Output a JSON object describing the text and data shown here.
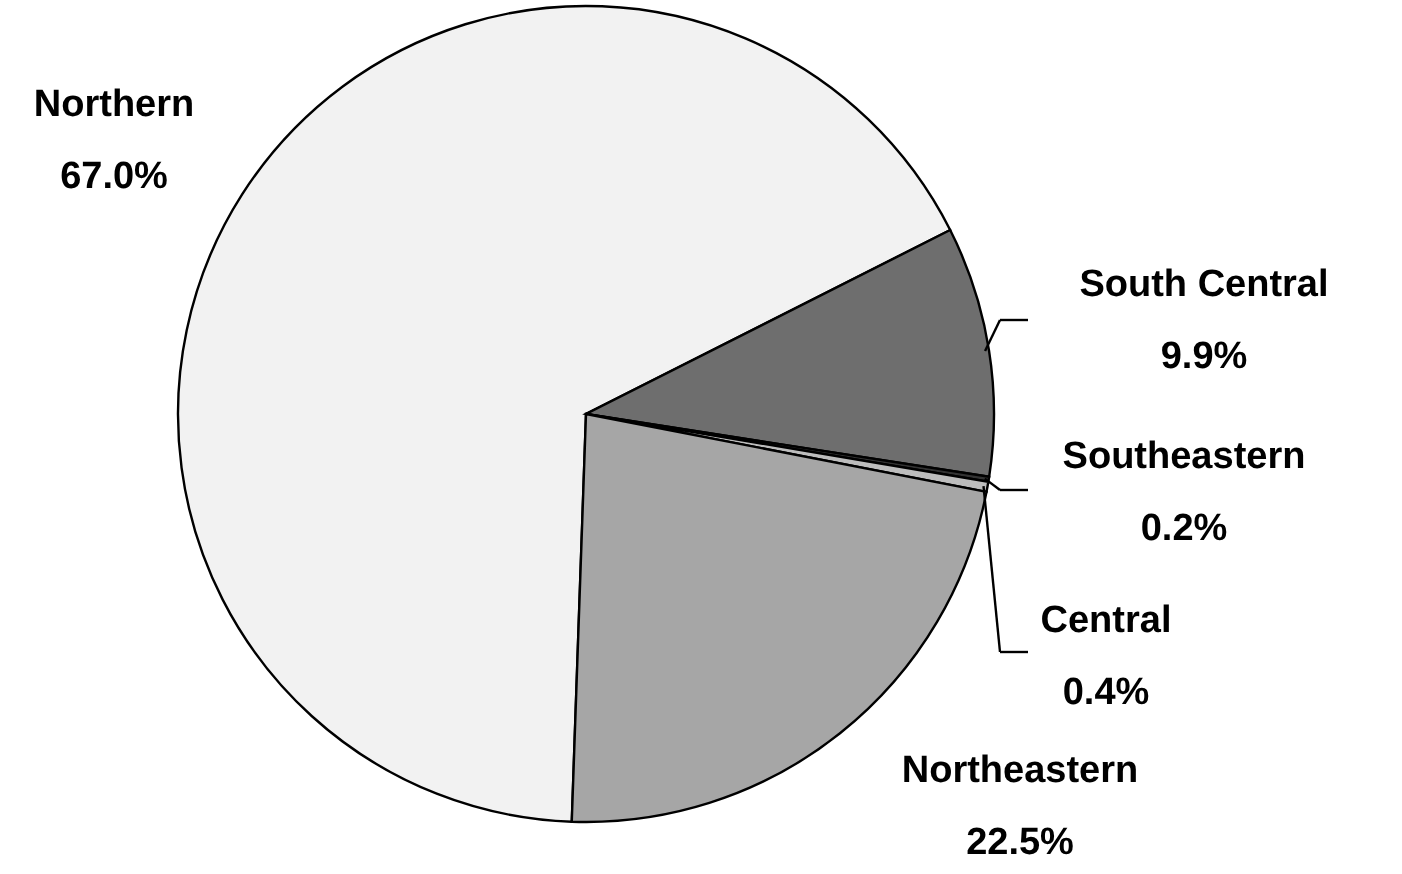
{
  "chart_data": {
    "type": "pie",
    "categories": [
      "Northern",
      "South Central",
      "Southeastern",
      "Central",
      "Northeastern"
    ],
    "values": [
      67.0,
      9.9,
      0.2,
      0.4,
      22.5
    ],
    "colors": [
      "#f2f2f2",
      "#6e6e6e",
      "#333333",
      "#bdbdbd",
      "#a6a6a6"
    ],
    "value_labels": [
      "67.0%",
      "9.9%",
      "0.2%",
      "0.4%",
      "22.5%"
    ]
  }
}
